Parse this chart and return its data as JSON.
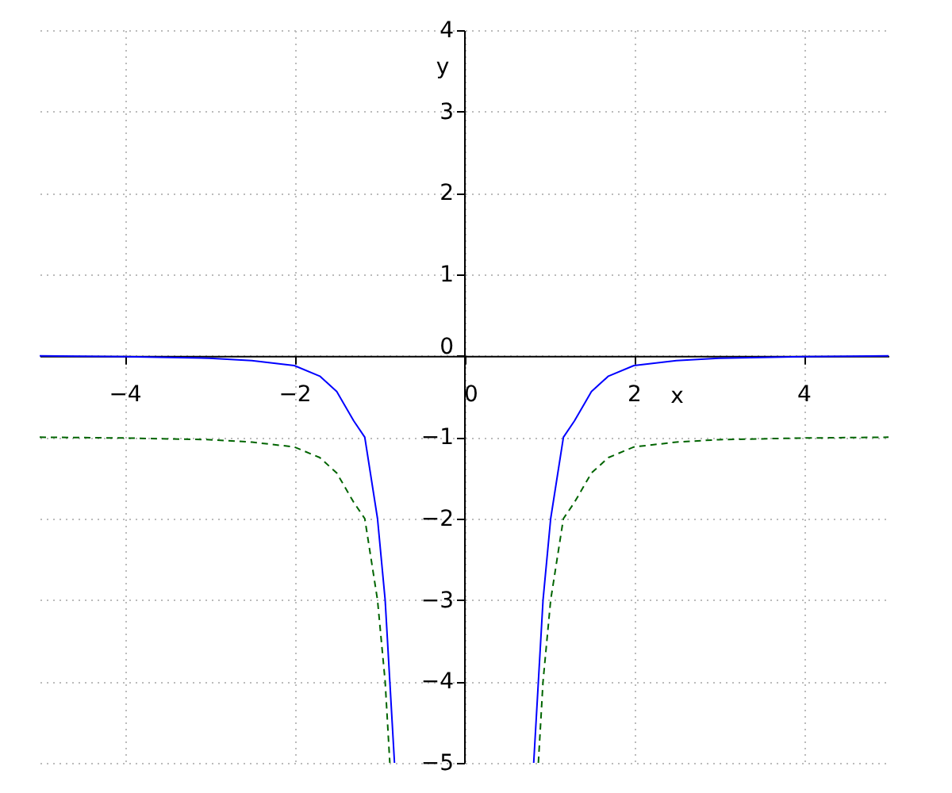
{
  "chart_data": {
    "type": "line",
    "xlabel": "x",
    "ylabel": "y",
    "xlim": [
      -5,
      5
    ],
    "ylim": [
      -5,
      4
    ],
    "xticks": [
      -4,
      -2,
      0,
      2,
      4
    ],
    "yticks": [
      -5,
      -4,
      -3,
      -2,
      -1,
      0,
      1,
      2,
      3,
      4
    ],
    "grid": true,
    "series": [
      {
        "color": "#0000ff",
        "line_style": "solid",
        "x": [
          -5,
          -4,
          -3,
          -2.5,
          -2,
          -1.7,
          -1.5,
          -1.3,
          -1.17,
          -1.02,
          -0.93,
          -0.875,
          -0.82,
          0,
          0.82,
          0.875,
          0.93,
          1.02,
          1.17,
          1.3,
          1.5,
          1.7,
          2,
          2.5,
          3,
          4,
          5
        ],
        "values": [
          0,
          -0.01,
          -0.03,
          -0.06,
          -0.12,
          -0.25,
          -0.44,
          -0.8,
          -1,
          -2,
          -3,
          -4,
          -5,
          null,
          -5,
          -4,
          -3,
          -2,
          -1,
          -0.8,
          -0.44,
          -0.25,
          -0.12,
          -0.06,
          -0.03,
          -0.01,
          0
        ]
      },
      {
        "color": "#006400",
        "line_style": "dashed",
        "x": [
          -5,
          -4,
          -3,
          -2.5,
          -2,
          -1.7,
          -1.5,
          -1.3,
          -1.17,
          -1.02,
          -0.93,
          -0.875,
          0,
          0.875,
          0.93,
          1.02,
          1.17,
          1.3,
          1.5,
          1.7,
          2,
          2.5,
          3,
          4,
          5
        ],
        "values": [
          -1,
          -1.01,
          -1.03,
          -1.06,
          -1.12,
          -1.25,
          -1.44,
          -1.8,
          -2,
          -3,
          -4,
          -5,
          null,
          -5,
          -4,
          -3,
          -2,
          -1.8,
          -1.44,
          -1.25,
          -1.12,
          -1.06,
          -1.03,
          -1.01,
          -1
        ]
      }
    ]
  }
}
